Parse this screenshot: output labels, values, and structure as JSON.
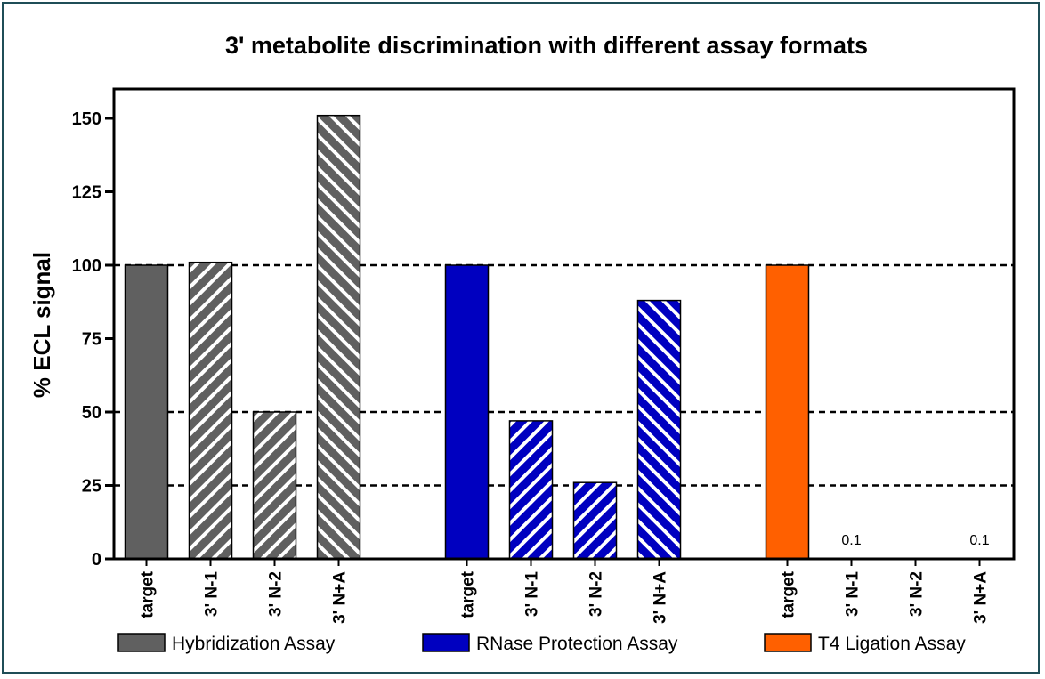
{
  "chart_data": {
    "type": "bar",
    "title": "3' metabolite discrimination with different assay formats",
    "xlabel": "",
    "ylabel": "% ECL signal",
    "ylim": [
      0,
      160
    ],
    "yticks": [
      0,
      25,
      50,
      75,
      100,
      125,
      150
    ],
    "reference_lines": [
      25,
      50,
      100
    ],
    "grid": false,
    "legend_position": "bottom",
    "groups": [
      {
        "name": "Hybridization Assay",
        "color": "#606060",
        "categories": [
          "target",
          "3' N-1",
          "3' N-2",
          "3' N+A"
        ],
        "values": [
          100,
          101,
          50,
          151
        ],
        "hatch": [
          "solid",
          "down",
          "down",
          "up"
        ],
        "value_labels": [
          "",
          "",
          "",
          ""
        ]
      },
      {
        "name": "RNase Protection Assay",
        "color": "#0000c0",
        "categories": [
          "target",
          "3' N-1",
          "3' N-2",
          "3' N+A"
        ],
        "values": [
          100,
          47,
          26,
          88
        ],
        "hatch": [
          "solid",
          "down",
          "down",
          "up"
        ],
        "value_labels": [
          "",
          "",
          "",
          ""
        ]
      },
      {
        "name": "T4 Ligation Assay",
        "color": "#ff6000",
        "categories": [
          "target",
          "3' N-1",
          "3' N-2",
          "3' N+A"
        ],
        "values": [
          100,
          0.1,
          0,
          0.1
        ],
        "hatch": [
          "solid",
          "down",
          "down",
          "up"
        ],
        "value_labels": [
          "",
          "0.1",
          "",
          "0.1"
        ]
      }
    ]
  }
}
